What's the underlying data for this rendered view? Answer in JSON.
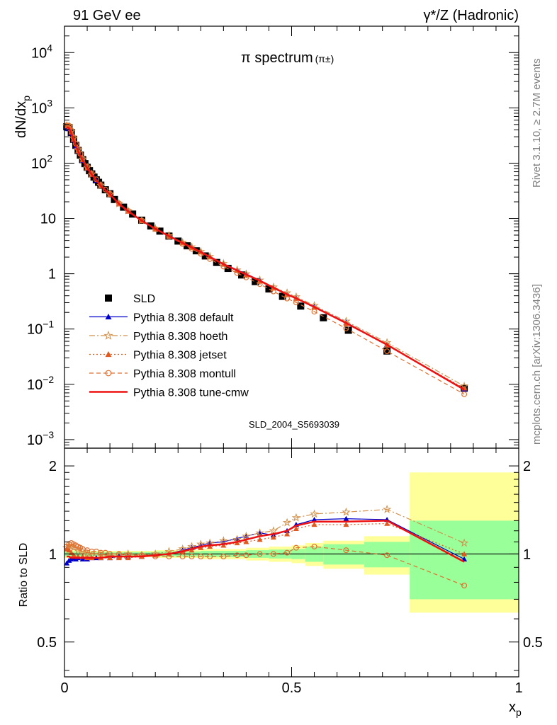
{
  "header": {
    "left": "91 GeV ee",
    "right": "γ*/Z (Hadronic)"
  },
  "side_labels": {
    "rivet": "Rivet 3.1.10, ≥ 2.7M events",
    "mcplots": "mcplots.cern.ch [arXiv:1306.3436]"
  },
  "chart_data": {
    "type": "line",
    "title": "π spectrum",
    "title_suffix": "(π±)",
    "watermark": "SLD_2004_S5693039",
    "xlabel": "x",
    "xlabel_sub": "p",
    "ylabel": "dN/dx",
    "ylabel_sub": "p",
    "ratio_ylabel": "Ratio to SLD",
    "xlim": [
      0,
      1
    ],
    "ylim": [
      0.0007,
      30000
    ],
    "yscale": "log",
    "ratio_ylim": [
      0.38,
      2.3
    ],
    "ratio_yscale": "log",
    "x_ticks": [
      0,
      0.5,
      1
    ],
    "x_tick_labels": [
      "0",
      "0.5",
      "1"
    ],
    "y_ticks": [
      0.001,
      0.01,
      0.1,
      1,
      10,
      100,
      1000,
      10000
    ],
    "y_tick_labels": [
      {
        "base": "10",
        "exp": "−3"
      },
      {
        "base": "10",
        "exp": "−2"
      },
      {
        "base": "10",
        "exp": "−1"
      },
      {
        "base": "1",
        "exp": ""
      },
      {
        "base": "10",
        "exp": ""
      },
      {
        "base": "10",
        "exp": "2"
      },
      {
        "base": "10",
        "exp": "3"
      },
      {
        "base": "10",
        "exp": "4"
      }
    ],
    "ratio_ticks": [
      0.5,
      1,
      2
    ],
    "ratio_tick_labels": [
      "0.5",
      "1",
      "2"
    ],
    "legend_position": "lower-left",
    "data": {
      "name": "SLD",
      "x": [
        0.005,
        0.01,
        0.015,
        0.02,
        0.025,
        0.03,
        0.035,
        0.04,
        0.045,
        0.05,
        0.055,
        0.06,
        0.065,
        0.07,
        0.075,
        0.08,
        0.09,
        0.1,
        0.11,
        0.13,
        0.15,
        0.17,
        0.19,
        0.21,
        0.23,
        0.25,
        0.27,
        0.29,
        0.31,
        0.335,
        0.36,
        0.39,
        0.42,
        0.45,
        0.48,
        0.52,
        0.57,
        0.625,
        0.71,
        0.88
      ],
      "y": [
        455,
        440,
        360,
        270,
        210,
        170,
        140,
        116,
        98,
        84,
        73,
        64,
        56,
        50,
        45,
        40,
        33,
        28,
        22,
        16,
        12,
        9.3,
        7.3,
        5.9,
        4.8,
        3.9,
        3.2,
        2.6,
        2.1,
        1.6,
        1.25,
        0.95,
        0.72,
        0.53,
        0.39,
        0.26,
        0.16,
        0.095,
        0.04,
        0.0085
      ],
      "band_edges": [
        0,
        0.02,
        0.04,
        0.07,
        0.1,
        0.14,
        0.2,
        0.3,
        0.4,
        0.45,
        0.5,
        0.53,
        0.57,
        0.66,
        0.76,
        1.0
      ],
      "band_inner": [
        0.02,
        0.02,
        0.015,
        0.015,
        0.015,
        0.015,
        0.02,
        0.025,
        0.03,
        0.035,
        0.04,
        0.06,
        0.08,
        0.1,
        0.3
      ],
      "band_outer": [
        0.03,
        0.03,
        0.025,
        0.025,
        0.025,
        0.025,
        0.03,
        0.04,
        0.05,
        0.06,
        0.07,
        0.09,
        0.11,
        0.15,
        0.9
      ]
    },
    "series": [
      {
        "name": "Pythia 8.308 default",
        "color": "#0000cc",
        "marker": "triangle",
        "x": [
          0.005,
          0.01,
          0.015,
          0.02,
          0.025,
          0.03,
          0.04,
          0.05,
          0.06,
          0.07,
          0.08,
          0.1,
          0.12,
          0.14,
          0.17,
          0.2,
          0.23,
          0.26,
          0.28,
          0.3,
          0.32,
          0.35,
          0.38,
          0.4,
          0.43,
          0.46,
          0.49,
          0.51,
          0.55,
          0.62,
          0.71,
          0.88
        ],
        "ratio": [
          0.93,
          0.95,
          0.96,
          0.97,
          0.96,
          0.97,
          0.96,
          0.96,
          0.97,
          0.97,
          0.97,
          0.97,
          0.98,
          0.98,
          0.98,
          0.99,
          1.0,
          1.03,
          1.05,
          1.07,
          1.09,
          1.1,
          1.13,
          1.15,
          1.18,
          1.16,
          1.2,
          1.26,
          1.31,
          1.32,
          1.31,
          0.96
        ]
      },
      {
        "name": "Pythia 8.308 hoeth",
        "color": "#d2904a",
        "marker": "star",
        "x": [
          0.005,
          0.01,
          0.015,
          0.02,
          0.03,
          0.04,
          0.05,
          0.06,
          0.08,
          0.1,
          0.12,
          0.14,
          0.17,
          0.2,
          0.23,
          0.26,
          0.28,
          0.3,
          0.32,
          0.35,
          0.38,
          0.4,
          0.43,
          0.46,
          0.49,
          0.51,
          0.55,
          0.62,
          0.71,
          0.88
        ],
        "ratio": [
          1.05,
          1.07,
          1.06,
          1.05,
          1.03,
          1.02,
          1.0,
          0.99,
          0.99,
          0.98,
          0.99,
          1.0,
          0.99,
          1.0,
          1.02,
          1.04,
          1.06,
          1.08,
          1.09,
          1.11,
          1.12,
          1.15,
          1.18,
          1.2,
          1.28,
          1.33,
          1.37,
          1.39,
          1.42,
          1.09
        ]
      },
      {
        "name": "Pythia 8.308 jetset",
        "color": "#e05a20",
        "marker": "triangle",
        "x": [
          0.005,
          0.01,
          0.015,
          0.02,
          0.03,
          0.04,
          0.05,
          0.06,
          0.08,
          0.1,
          0.12,
          0.14,
          0.17,
          0.2,
          0.23,
          0.26,
          0.28,
          0.3,
          0.32,
          0.35,
          0.38,
          0.4,
          0.43,
          0.46,
          0.49,
          0.51,
          0.55,
          0.62,
          0.71,
          0.88
        ],
        "ratio": [
          1.04,
          1.03,
          1.01,
          0.99,
          0.98,
          0.98,
          0.97,
          0.97,
          0.97,
          0.97,
          0.97,
          0.97,
          0.98,
          0.99,
          1.0,
          1.02,
          1.03,
          1.05,
          1.06,
          1.07,
          1.09,
          1.1,
          1.12,
          1.14,
          1.17,
          1.22,
          1.26,
          1.26,
          1.27,
          1.0
        ]
      },
      {
        "name": "Pythia 8.308 montull",
        "color": "#e07030",
        "marker": "circle",
        "x": [
          0.005,
          0.01,
          0.015,
          0.02,
          0.025,
          0.03,
          0.035,
          0.04,
          0.05,
          0.06,
          0.07,
          0.08,
          0.09,
          0.1,
          0.12,
          0.14,
          0.17,
          0.2,
          0.23,
          0.26,
          0.28,
          0.3,
          0.32,
          0.35,
          0.38,
          0.4,
          0.43,
          0.46,
          0.49,
          0.51,
          0.55,
          0.62,
          0.71,
          0.88
        ],
        "ratio": [
          1.06,
          1.08,
          1.09,
          1.08,
          1.07,
          1.06,
          1.05,
          1.04,
          1.03,
          1.02,
          1.02,
          1.01,
          1.01,
          1.0,
          1.0,
          0.99,
          0.99,
          0.98,
          0.98,
          0.98,
          0.98,
          0.98,
          0.98,
          0.98,
          0.99,
          0.99,
          1.0,
          1.0,
          1.01,
          1.05,
          1.06,
          1.03,
          0.99,
          0.78
        ]
      },
      {
        "name": "Pythia 8.308 tune-cmw",
        "color": "#ee1111",
        "marker": "none",
        "x": [
          0.005,
          0.01,
          0.015,
          0.02,
          0.03,
          0.04,
          0.05,
          0.06,
          0.08,
          0.1,
          0.12,
          0.14,
          0.17,
          0.2,
          0.23,
          0.26,
          0.28,
          0.3,
          0.32,
          0.35,
          0.38,
          0.4,
          0.43,
          0.46,
          0.49,
          0.51,
          0.55,
          0.62,
          0.71,
          0.88
        ],
        "ratio": [
          0.98,
          0.98,
          0.97,
          0.97,
          0.97,
          0.97,
          0.97,
          0.97,
          0.97,
          0.98,
          0.98,
          0.98,
          0.98,
          0.99,
          1.0,
          1.02,
          1.04,
          1.06,
          1.07,
          1.08,
          1.1,
          1.12,
          1.15,
          1.17,
          1.2,
          1.25,
          1.29,
          1.29,
          1.3,
          0.94
        ]
      }
    ]
  }
}
